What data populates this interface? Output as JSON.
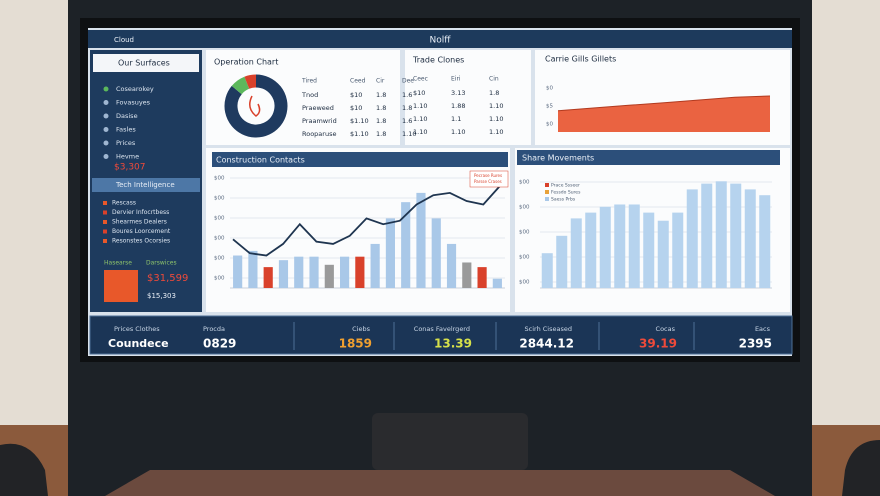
{
  "header": {
    "app": "Cloud",
    "title": "Nolff"
  },
  "sidebar": {
    "top": "Our Surfaces",
    "items": [
      "Cosearokey",
      "Fovasuyes",
      "Dasise",
      "Fasles",
      "Prices",
      "Hevme"
    ],
    "alert_value": "$3,307",
    "active": "Tech Intelligence",
    "items2": [
      "Rescass",
      "Dervier Infocrtbess",
      "Shearmes Dealers",
      "Boures Loorcement",
      "Resonstes Ocorsies"
    ],
    "foot_labels": [
      "Hasearse",
      "Darswices"
    ],
    "foot_value": "$31,599",
    "foot_sub": "$15,303"
  },
  "panel1": {
    "title": "Operation Chart",
    "donut": {
      "values": [
        86,
        8,
        6
      ],
      "colors": [
        "#1f3a5f",
        "#5cb85c",
        "#d9412b"
      ]
    },
    "columns": [
      "Tired",
      "Ceed",
      "Cir",
      "Dee"
    ],
    "rows": [
      [
        "Tnod",
        "$10",
        "1.8",
        "1.6"
      ],
      [
        "Praeweed",
        "$10",
        "1.8",
        "1.8"
      ],
      [
        "Praamwrid",
        "$1.10",
        "1.8",
        "1.6"
      ],
      [
        "Rooparuse",
        "$1.10",
        "1.8",
        "1.10"
      ]
    ]
  },
  "panel2": {
    "title": "Trade Clones",
    "columns": [
      "Ceec",
      "Eiri",
      "Cin"
    ],
    "rows": [
      [
        "$10",
        "3.13",
        "1.8"
      ],
      [
        "1.10",
        "1.88",
        "1.10"
      ],
      [
        "1.10",
        "1.1",
        "1.10"
      ],
      [
        "1.10",
        "1.10",
        "1.10"
      ]
    ]
  },
  "panel3": {
    "title": "Carrie Gills Gillets",
    "yticks_text": [
      "$0",
      "$5",
      "$0"
    ],
    "area": {
      "values": [
        16,
        18,
        20,
        22,
        24,
        26,
        27
      ],
      "ylim": [
        0,
        30
      ],
      "color": "#e8522c"
    }
  },
  "combo": {
    "title": "Construction Contacts",
    "legend": [
      "Pecrase Rures",
      "Parsse Crases"
    ],
    "yticks_text": [
      "$00",
      "$00",
      "$00",
      "$00",
      "$00",
      "$00"
    ],
    "ylim": [
      0,
      100
    ],
    "bars": [
      28,
      32,
      18,
      24,
      27,
      27,
      20,
      27,
      27,
      38,
      60,
      74,
      82,
      60,
      38,
      22,
      18,
      8
    ],
    "bar_colors": [
      "#a9c8e8",
      "#a9c8e8",
      "#d9412b",
      "#a9c8e8",
      "#a9c8e8",
      "#a9c8e8",
      "#9a9a9a",
      "#a9c8e8",
      "#d9412b",
      "#a9c8e8",
      "#a9c8e8",
      "#a9c8e8",
      "#a9c8e8",
      "#a9c8e8",
      "#a9c8e8",
      "#9a9a9a",
      "#d9412b",
      "#a9c8e8"
    ],
    "line": [
      42,
      30,
      28,
      38,
      55,
      40,
      38,
      45,
      60,
      55,
      58,
      72,
      80,
      82,
      75,
      72,
      88
    ],
    "line_color": "#1f3550"
  },
  "bars2": {
    "title": "Share Movements",
    "legend": [
      "Prace Ssseer",
      "Fessdo Sures",
      "Saess Prbs"
    ],
    "yticks_text": [
      "$00",
      "$00",
      "$00",
      "$00",
      "$00"
    ],
    "ylim": [
      0,
      100
    ],
    "values": [
      30,
      45,
      60,
      65,
      70,
      72,
      72,
      65,
      58,
      65,
      85,
      90,
      92,
      90,
      85,
      80
    ],
    "color": "#b6d3ee"
  },
  "kpis": [
    {
      "label": "Prices Clothes",
      "value": "Coundece",
      "color": "#ffffff"
    },
    {
      "label": "Procda",
      "value": "0829",
      "color": "#ffffff"
    },
    {
      "label": "Ciebs",
      "value": "1859",
      "color": "#f0a030"
    },
    {
      "label": "Conas Favelrgerd",
      "value": "13.39",
      "color": "#d6e04a"
    },
    {
      "label": "Scirh Ciseased",
      "value": "2844.12",
      "color": "#ffffff"
    },
    {
      "label": "Cocas",
      "value": "39.19",
      "color": "#ef4a3a"
    },
    {
      "label": "Eacs",
      "value": "2395",
      "color": "#ffffff"
    }
  ]
}
